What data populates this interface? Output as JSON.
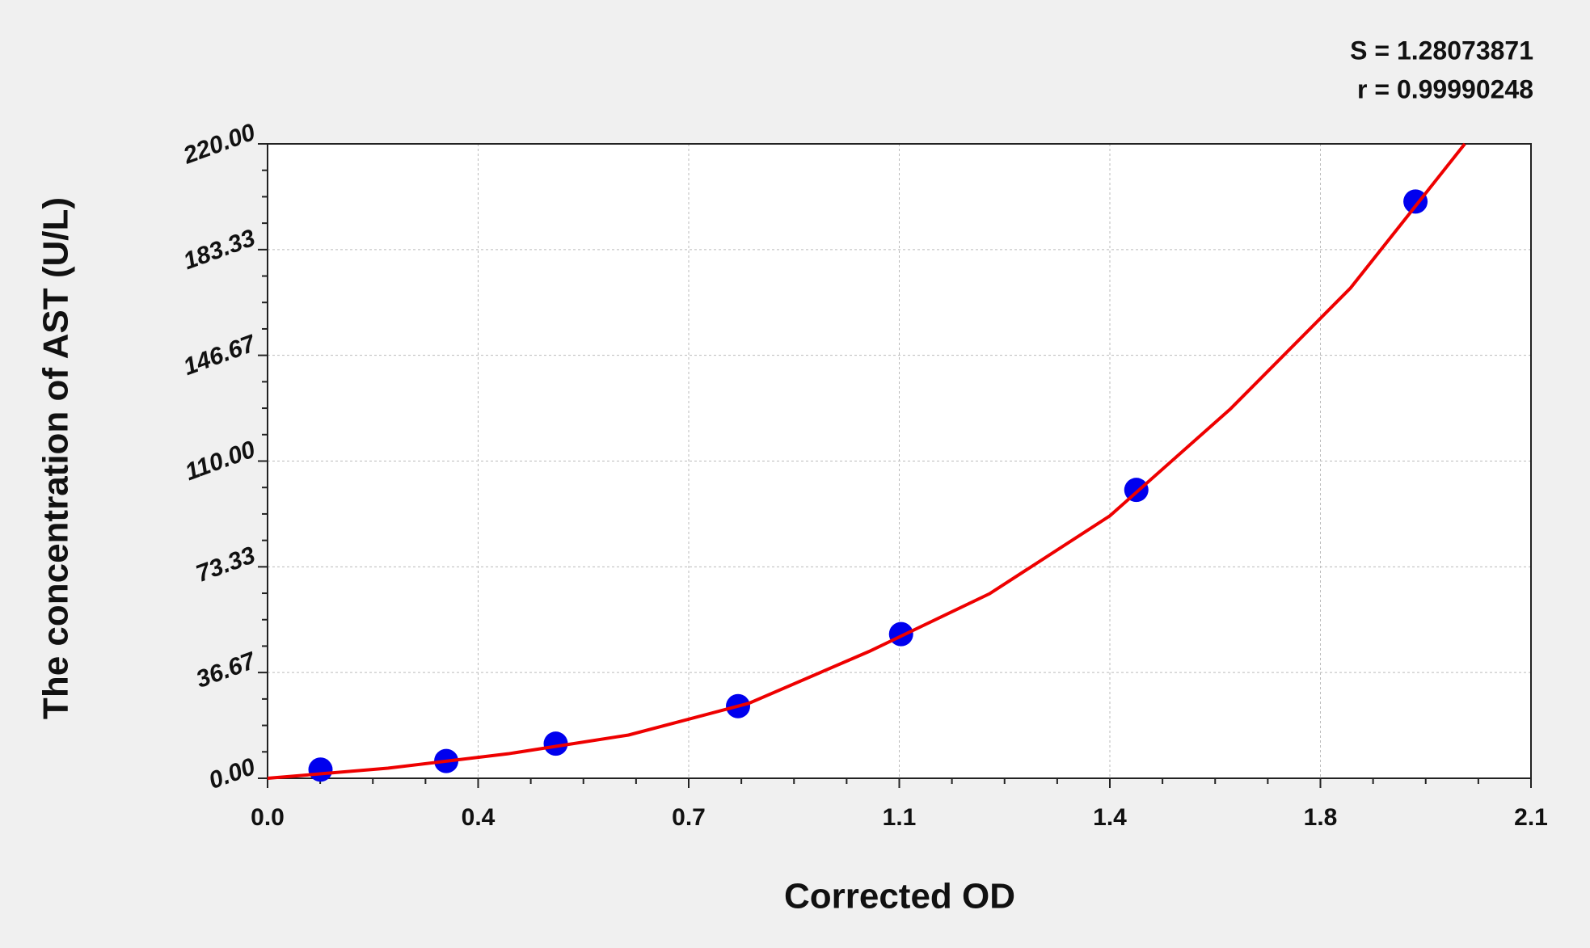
{
  "chart_data": {
    "type": "scatter",
    "annotations": [
      "S = 1.28073871",
      "r = 0.99990248"
    ],
    "xlabel": "Corrected OD",
    "ylabel": "The concentration of AST (U/L)",
    "xlim": [
      0,
      2.1
    ],
    "ylim": [
      0,
      220
    ],
    "xticks": [
      {
        "value": 0,
        "label": "0.0"
      },
      {
        "value": 0.35,
        "label": "0.4"
      },
      0.7,
      {
        "value": 1.05,
        "label": "1.1"
      },
      1.4,
      {
        "value": 1.75,
        "label": "1.8"
      },
      2.1
    ],
    "yticks": [
      {
        "value": 0,
        "label": "0.00"
      },
      36.67,
      73.33,
      {
        "value": 110,
        "label": "110.00"
      },
      146.67,
      183.33,
      {
        "value": 220,
        "label": "220.00"
      }
    ],
    "grid": true,
    "series": [
      {
        "type": "scatter",
        "color": "#0000ee",
        "x": [
          0.088,
          0.297,
          0.479,
          0.782,
          1.053,
          1.444,
          1.908
        ],
        "values": [
          3,
          6,
          12,
          25,
          50,
          100,
          200
        ]
      },
      {
        "type": "line",
        "color": "#ee0000",
        "x": [
          0,
          0.2,
          0.4,
          0.6,
          0.8,
          1.0,
          1.2,
          1.4,
          1.6,
          1.8,
          1.99
        ],
        "values": [
          0,
          3.5,
          8.5,
          15,
          26,
          44,
          64,
          91,
          128,
          170,
          220
        ]
      }
    ]
  }
}
